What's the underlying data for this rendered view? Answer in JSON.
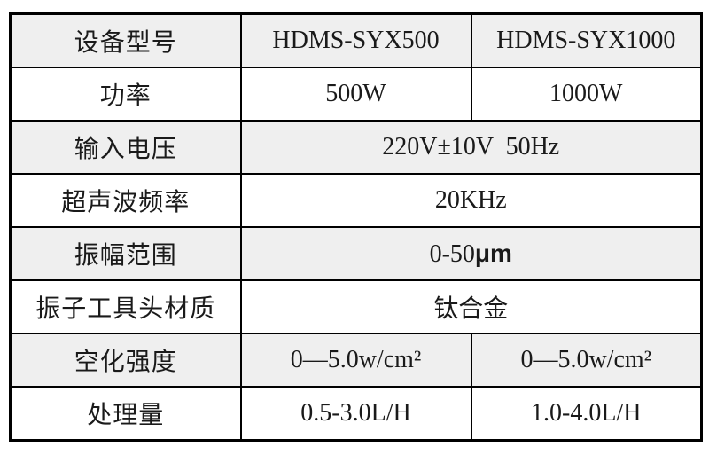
{
  "table": {
    "colors": {
      "row_shaded": "#efefef",
      "row_plain": "#ffffff",
      "border": "#000000",
      "text": "#1a1a1a"
    },
    "rows": [
      {
        "label": "设备型号",
        "value1": "HDMS-SYX500",
        "value2": "HDMS-SYX1000"
      },
      {
        "label": "功率",
        "value1": "500W",
        "value2": "1000W"
      },
      {
        "label": "输入电压",
        "value": "220V±10V  50Hz"
      },
      {
        "label": "超声波频率",
        "value": "20KHz"
      },
      {
        "label": "振幅范围",
        "value": "0-50",
        "unit": "μm"
      },
      {
        "label": "振子工具头材质",
        "value": "钛合金"
      },
      {
        "label": "空化强度",
        "value1": "0—5.0w/cm²",
        "value2": "0—5.0w/cm²"
      },
      {
        "label": "处理量",
        "value1": "0.5-3.0L/H",
        "value2": "1.0-4.0L/H"
      }
    ]
  }
}
